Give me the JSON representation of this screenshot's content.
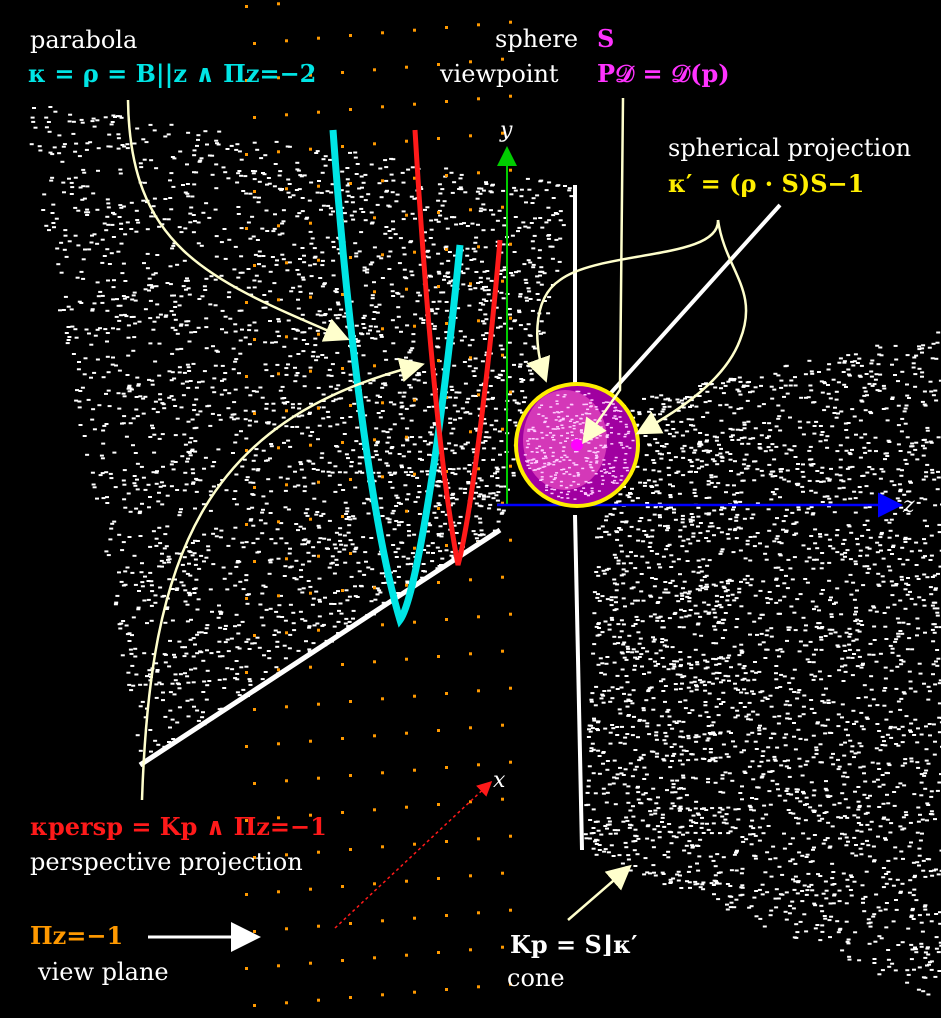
{
  "colors": {
    "background": "#000000",
    "point_cloud": "#ffffff",
    "view_plane": "#ff9900",
    "parabola": "#00e5e5",
    "perspective": "#ff1a1a",
    "sphere": "#b000b0",
    "spherical_projection": "#ffee00",
    "arrows": "#ffffcc",
    "axis_y": "#00cc00",
    "axis_z": "#0000ff"
  },
  "labels": {
    "parabola_word": "parabola",
    "parabola_formula": "κ = ρ = B||z ∧ Πz=−2",
    "sphere_word": "sphere",
    "sphere_symbol": "S",
    "viewpoint_word": "viewpoint",
    "viewpoint_formula": "P𝒟 = 𝒟(p)",
    "spherical_word": "spherical projection",
    "spherical_formula": "κ′ = (ρ · S)S−1",
    "persp_formula": "κpersp = Kp ∧ Πz=−1",
    "persp_word": "perspective projection",
    "viewplane_symbol": "Πz=−1",
    "viewplane_word": "view plane",
    "cone_formula": "Kp = S⌋κ′",
    "cone_word": "cone"
  },
  "axes": {
    "x": "x",
    "y": "y",
    "z": "z"
  },
  "icons": [
    "arrow-icon",
    "sphere-icon"
  ]
}
